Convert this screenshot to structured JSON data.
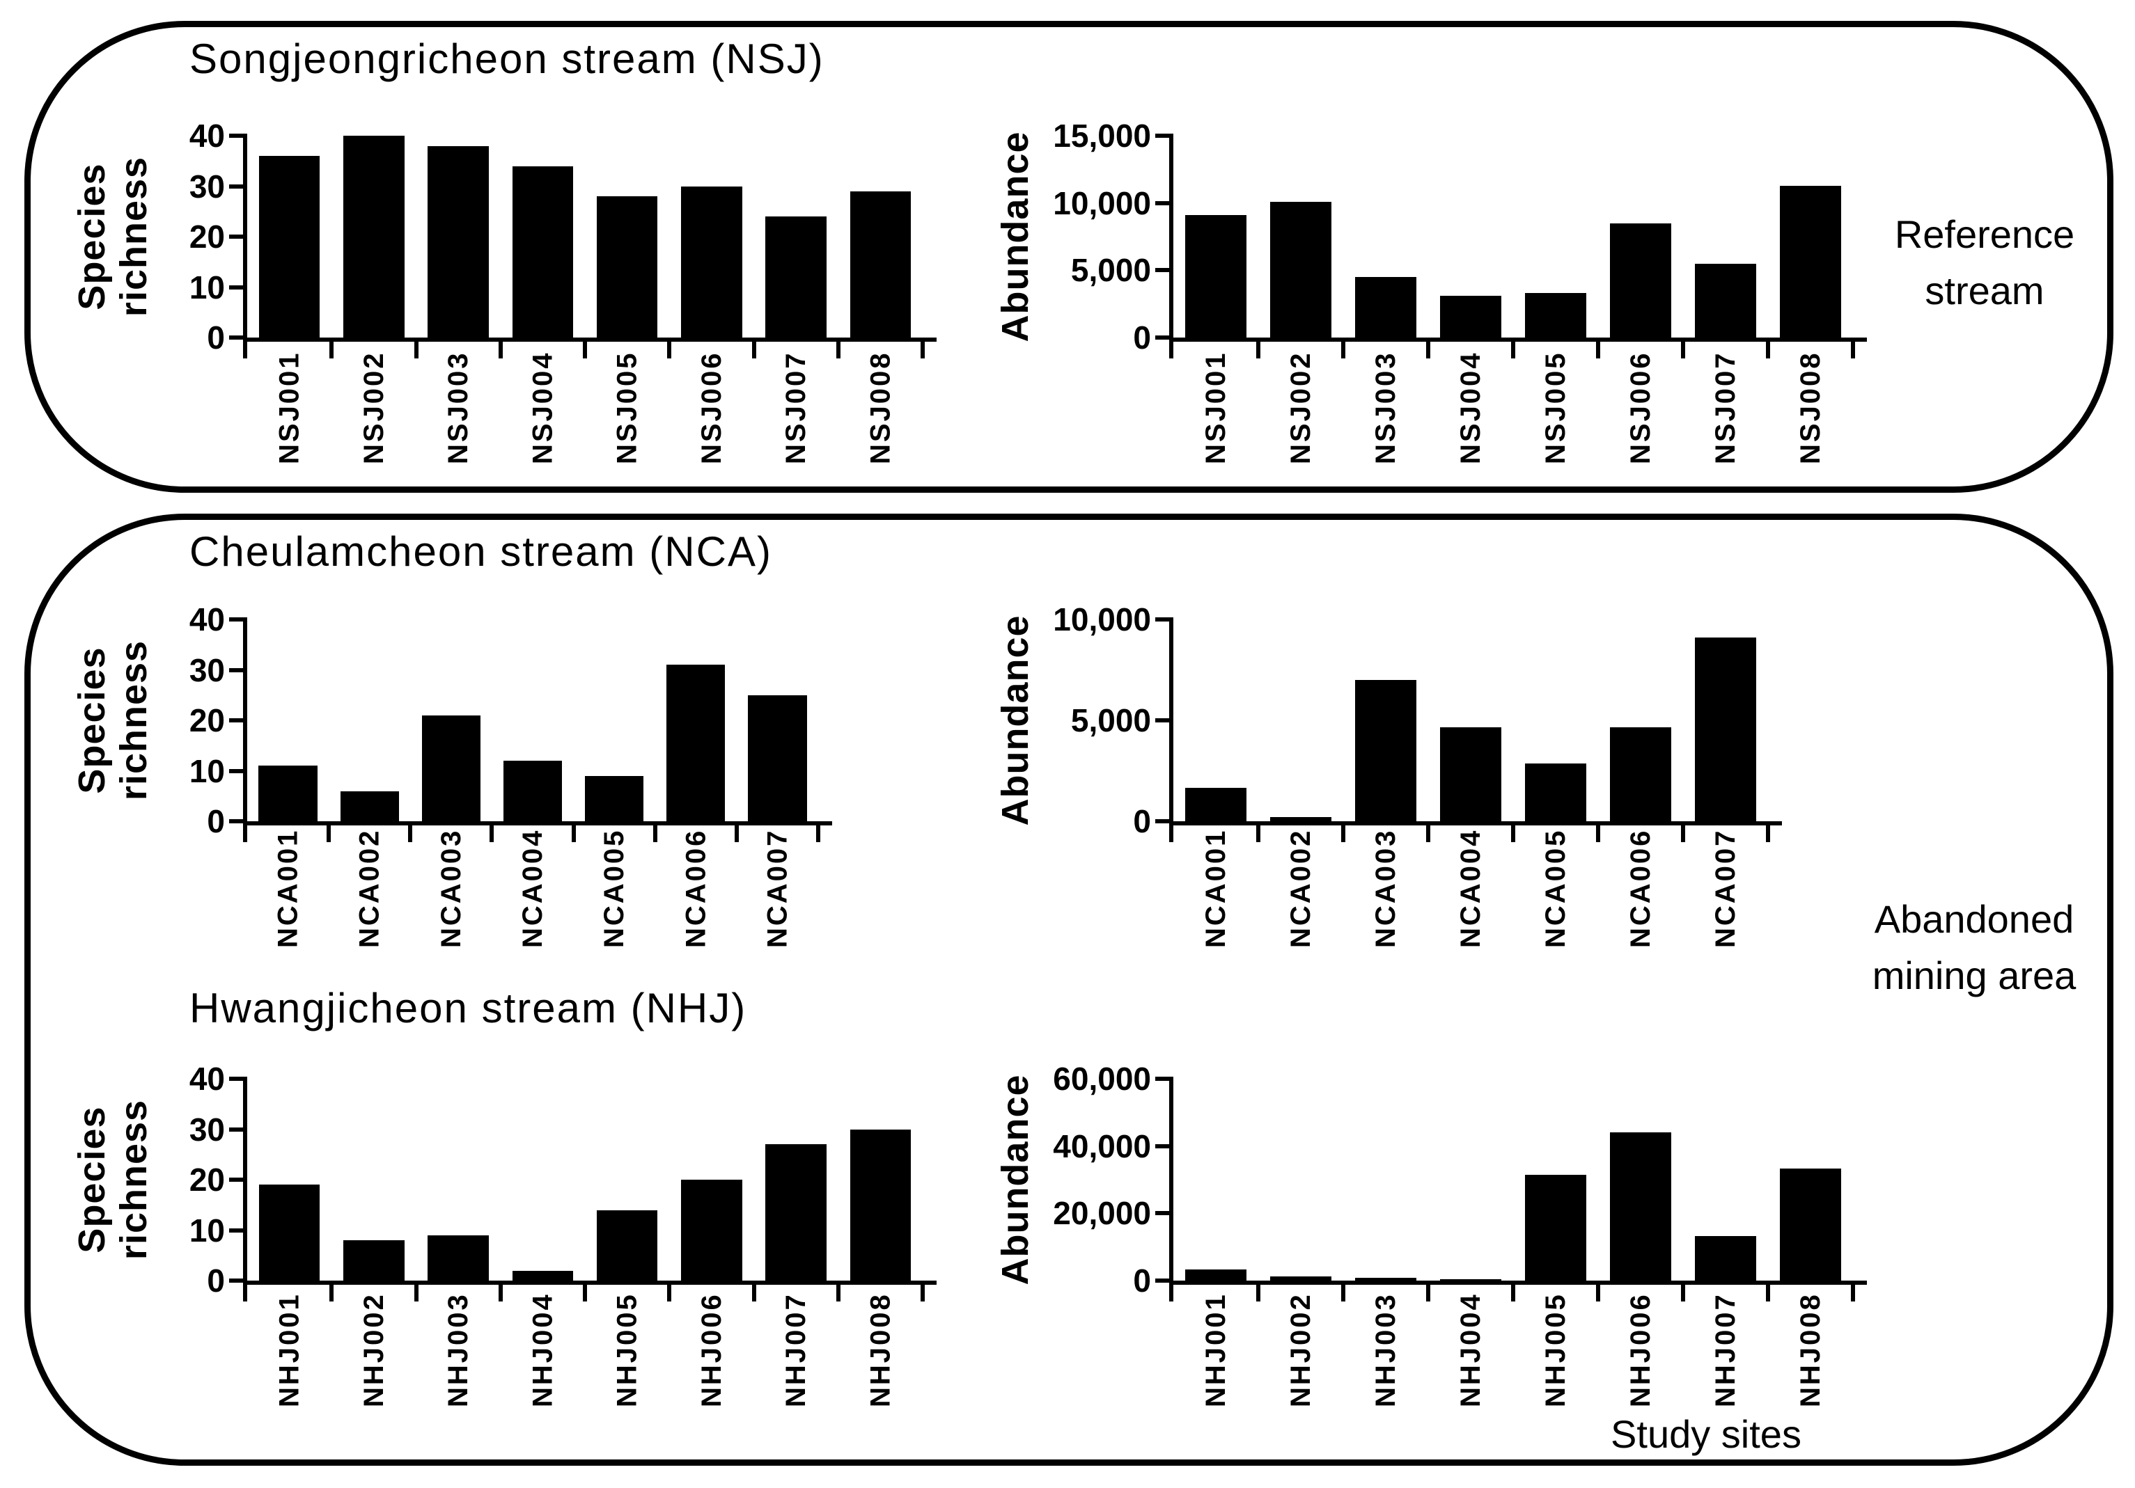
{
  "panels": {
    "top": {
      "side_label": {
        "line1": "Reference",
        "line2": "stream"
      }
    },
    "bottom": {
      "side_label": {
        "line1": "Abandoned",
        "line2": "mining area"
      }
    }
  },
  "colors": {
    "bar": "#000000",
    "axis": "#000000",
    "border": "#000000",
    "background": "#ffffff"
  },
  "chart_data": [
    {
      "id": "nsj_species_richness",
      "type": "bar",
      "title": "Songjeongricheon stream (NSJ)",
      "ylabel": "Species richness",
      "ylabel_lines": [
        "Species",
        "richness"
      ],
      "xlabel": "",
      "categories": [
        "NSJ001",
        "NSJ002",
        "NSJ003",
        "NSJ004",
        "NSJ005",
        "NSJ006",
        "NSJ007",
        "NSJ008"
      ],
      "values": [
        36,
        40,
        38,
        34,
        28,
        30,
        24,
        29
      ],
      "ylim": [
        0,
        40
      ],
      "yticks": [
        0,
        10,
        20,
        30,
        40
      ],
      "ytick_labels": [
        "0",
        "10",
        "20",
        "30",
        "40"
      ],
      "grid": false,
      "legend": null
    },
    {
      "id": "nsj_abundance",
      "type": "bar",
      "title": "",
      "ylabel": "Abundance",
      "ylabel_lines": [
        "Abundance"
      ],
      "xlabel": "",
      "categories": [
        "NSJ001",
        "NSJ002",
        "NSJ003",
        "NSJ004",
        "NSJ005",
        "NSJ006",
        "NSJ007",
        "NSJ008"
      ],
      "values": [
        9100,
        10100,
        4500,
        3100,
        3300,
        8500,
        5500,
        11300
      ],
      "ylim": [
        0,
        15000
      ],
      "yticks": [
        0,
        5000,
        10000,
        15000
      ],
      "ytick_labels": [
        "0",
        "5,000",
        "10,000",
        "15,000"
      ],
      "grid": false,
      "legend": null
    },
    {
      "id": "nca_species_richness",
      "type": "bar",
      "title": "Cheulamcheon stream (NCA)",
      "ylabel": "Species richness",
      "ylabel_lines": [
        "Species",
        "richness"
      ],
      "xlabel": "",
      "categories": [
        "NCA001",
        "NCA002",
        "NCA003",
        "NCA004",
        "NCA005",
        "NCA006",
        "NCA007"
      ],
      "values": [
        11,
        6,
        21,
        12,
        9,
        31,
        25
      ],
      "ylim": [
        0,
        40
      ],
      "yticks": [
        0,
        10,
        20,
        30,
        40
      ],
      "ytick_labels": [
        "0",
        "10",
        "20",
        "30",
        "40"
      ],
      "grid": false,
      "legend": null
    },
    {
      "id": "nca_abundance",
      "type": "bar",
      "title": "",
      "ylabel": "Abundance",
      "ylabel_lines": [
        "Abundance"
      ],
      "xlabel": "",
      "categories": [
        "NCA001",
        "NCA002",
        "NCA003",
        "NCA004",
        "NCA005",
        "NCA006",
        "NCA007"
      ],
      "values": [
        1650,
        200,
        7000,
        4650,
        2850,
        4650,
        9100
      ],
      "ylim": [
        0,
        10000
      ],
      "yticks": [
        0,
        5000,
        10000
      ],
      "ytick_labels": [
        "0",
        "5,000",
        "10,000"
      ],
      "grid": false,
      "legend": null
    },
    {
      "id": "nhj_species_richness",
      "type": "bar",
      "title": "Hwangjicheon stream (NHJ)",
      "ylabel": "Species richness",
      "ylabel_lines": [
        "Species",
        "richness"
      ],
      "xlabel": "",
      "categories": [
        "NHJ001",
        "NHJ002",
        "NHJ003",
        "NHJ004",
        "NHJ005",
        "NHJ006",
        "NHJ007",
        "NHJ008"
      ],
      "values": [
        19,
        8,
        9,
        2,
        14,
        20,
        27,
        30
      ],
      "ylim": [
        0,
        40
      ],
      "yticks": [
        0,
        10,
        20,
        30,
        40
      ],
      "ytick_labels": [
        "0",
        "10",
        "20",
        "30",
        "40"
      ],
      "grid": false,
      "legend": null
    },
    {
      "id": "nhj_abundance",
      "type": "bar",
      "title": "",
      "ylabel": "Abundance",
      "ylabel_lines": [
        "Abundance"
      ],
      "xlabel": "Study sites",
      "categories": [
        "NHJ001",
        "NHJ002",
        "NHJ003",
        "NHJ004",
        "NHJ005",
        "NHJ006",
        "NHJ007",
        "NHJ008"
      ],
      "values": [
        3300,
        1300,
        900,
        500,
        31500,
        44000,
        13200,
        33400
      ],
      "ylim": [
        0,
        60000
      ],
      "yticks": [
        0,
        20000,
        40000,
        60000
      ],
      "ytick_labels": [
        "0",
        "20,000",
        "40,000",
        "60,000"
      ],
      "grid": false,
      "legend": null
    }
  ]
}
